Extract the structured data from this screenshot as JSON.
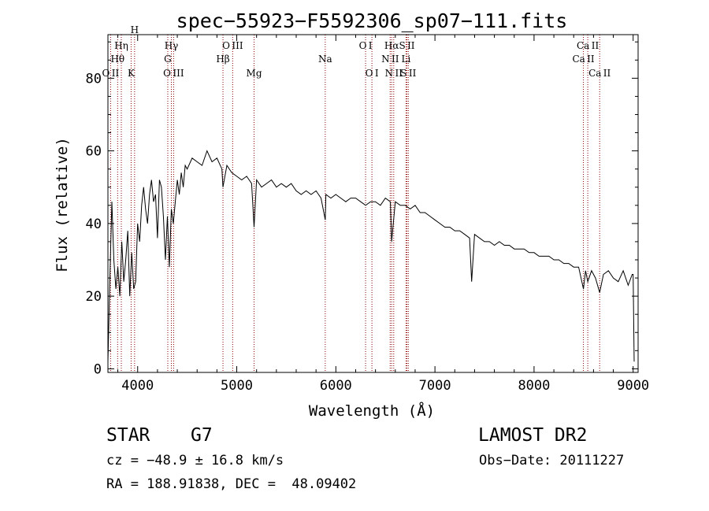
{
  "chart_data": {
    "type": "line",
    "title": "spec−55923−F5592306_sp07−111.fits",
    "xlabel": "Wavelength (Å)",
    "ylabel": "Flux (relative)",
    "xlim": [
      3700,
      9050
    ],
    "ylim": [
      -1,
      92
    ],
    "x_ticks": [
      4000,
      5000,
      6000,
      7000,
      8000,
      9000
    ],
    "y_ticks": [
      0,
      20,
      40,
      60,
      80
    ],
    "grid": false,
    "series": [
      {
        "x": [
          3700,
          3720,
          3740,
          3760,
          3780,
          3800,
          3820,
          3840,
          3860,
          3880,
          3900,
          3920,
          3940,
          3960,
          3980,
          4000,
          4020,
          4040,
          4060,
          4080,
          4100,
          4120,
          4140,
          4160,
          4180,
          4200,
          4220,
          4240,
          4260,
          4280,
          4300,
          4320,
          4340,
          4360,
          4380,
          4400,
          4420,
          4440,
          4460,
          4480,
          4500,
          4550,
          4600,
          4650,
          4700,
          4750,
          4800,
          4850,
          4861,
          4900,
          4950,
          5000,
          5050,
          5100,
          5150,
          5175,
          5200,
          5250,
          5300,
          5350,
          5400,
          5450,
          5500,
          5550,
          5600,
          5650,
          5700,
          5750,
          5800,
          5850,
          5893,
          5900,
          5950,
          6000,
          6050,
          6100,
          6150,
          6200,
          6250,
          6300,
          6350,
          6400,
          6450,
          6500,
          6550,
          6563,
          6600,
          6650,
          6700,
          6750,
          6800,
          6850,
          6900,
          6950,
          7000,
          7050,
          7100,
          7150,
          7200,
          7250,
          7300,
          7350,
          7370,
          7400,
          7450,
          7500,
          7550,
          7600,
          7650,
          7700,
          7750,
          7800,
          7850,
          7900,
          7950,
          8000,
          8050,
          8100,
          8150,
          8200,
          8250,
          8300,
          8350,
          8400,
          8450,
          8498,
          8520,
          8542,
          8580,
          8620,
          8662,
          8700,
          8750,
          8800,
          8850,
          8900,
          8950,
          8990,
          9000,
          9010
        ],
        "y": [
          2,
          25,
          46,
          30,
          22,
          28,
          20,
          35,
          24,
          30,
          38,
          20,
          32,
          22,
          24,
          40,
          35,
          45,
          50,
          44,
          40,
          48,
          52,
          46,
          48,
          36,
          52,
          50,
          42,
          30,
          42,
          28,
          44,
          40,
          46,
          52,
          48,
          54,
          50,
          56,
          55,
          58,
          57,
          56,
          60,
          57,
          58,
          55,
          50,
          56,
          54,
          53,
          52,
          53,
          51,
          39,
          52,
          50,
          51,
          52,
          50,
          51,
          50,
          51,
          49,
          48,
          49,
          48,
          49,
          47,
          41,
          48,
          47,
          48,
          47,
          46,
          47,
          47,
          46,
          45,
          46,
          46,
          45,
          47,
          46,
          35,
          46,
          45,
          45,
          44,
          45,
          43,
          43,
          42,
          41,
          40,
          39,
          39,
          38,
          38,
          37,
          36,
          24,
          37,
          36,
          35,
          35,
          34,
          35,
          34,
          34,
          33,
          33,
          33,
          32,
          32,
          31,
          31,
          31,
          30,
          30,
          29,
          29,
          28,
          28,
          22,
          27,
          24,
          27,
          25,
          21,
          26,
          27,
          25,
          24,
          27,
          23,
          26,
          26,
          2
        ]
      }
    ],
    "lines": [
      {
        "label": "O II",
        "x": 3727,
        "row": 3
      },
      {
        "label": "Hθ",
        "x": 3798,
        "row": 2
      },
      {
        "label": "Hη",
        "x": 3835,
        "row": 1
      },
      {
        "label": "K",
        "x": 3934,
        "row": 3
      },
      {
        "label": "H",
        "x": 3969,
        "row": 0
      },
      {
        "label": "Hγ",
        "x": 4340,
        "row": 1
      },
      {
        "label": "G",
        "x": 4304,
        "row": 2
      },
      {
        "label": "O III",
        "x": 4363,
        "row": 3
      },
      {
        "label": "Hβ",
        "x": 4861,
        "row": 2
      },
      {
        "label": "O III",
        "x": 4959,
        "row": 1
      },
      {
        "label": "Mg",
        "x": 5175,
        "row": 3
      },
      {
        "label": "Na",
        "x": 5893,
        "row": 2
      },
      {
        "label": "O I",
        "x": 6300,
        "row": 1
      },
      {
        "label": "O I",
        "x": 6364,
        "row": 3
      },
      {
        "label": "N II",
        "x": 6548,
        "row": 2
      },
      {
        "label": "Hα",
        "x": 6563,
        "row": 1
      },
      {
        "label": "N II",
        "x": 6584,
        "row": 3
      },
      {
        "label": "Li",
        "x": 6708,
        "row": 2
      },
      {
        "label": "S II",
        "x": 6717,
        "row": 1
      },
      {
        "label": "S II",
        "x": 6731,
        "row": 3
      },
      {
        "label": "Ca II",
        "x": 8498,
        "row": 2
      },
      {
        "label": "Ca II",
        "x": 8542,
        "row": 1
      },
      {
        "label": "Ca II",
        "x": 8662,
        "row": 3
      }
    ],
    "colors": {
      "spectrum": "#000000",
      "lines": "#8b0000",
      "axes": "#000000"
    }
  },
  "info": {
    "class": "STAR",
    "subclass": "G7",
    "survey": "LAMOST DR2",
    "cz": "cz = −48.9 ± 16.8 km/s",
    "obsdate": "Obs−Date: 20111227",
    "radec": "RA = 188.91838, DEC =  48.09402"
  }
}
